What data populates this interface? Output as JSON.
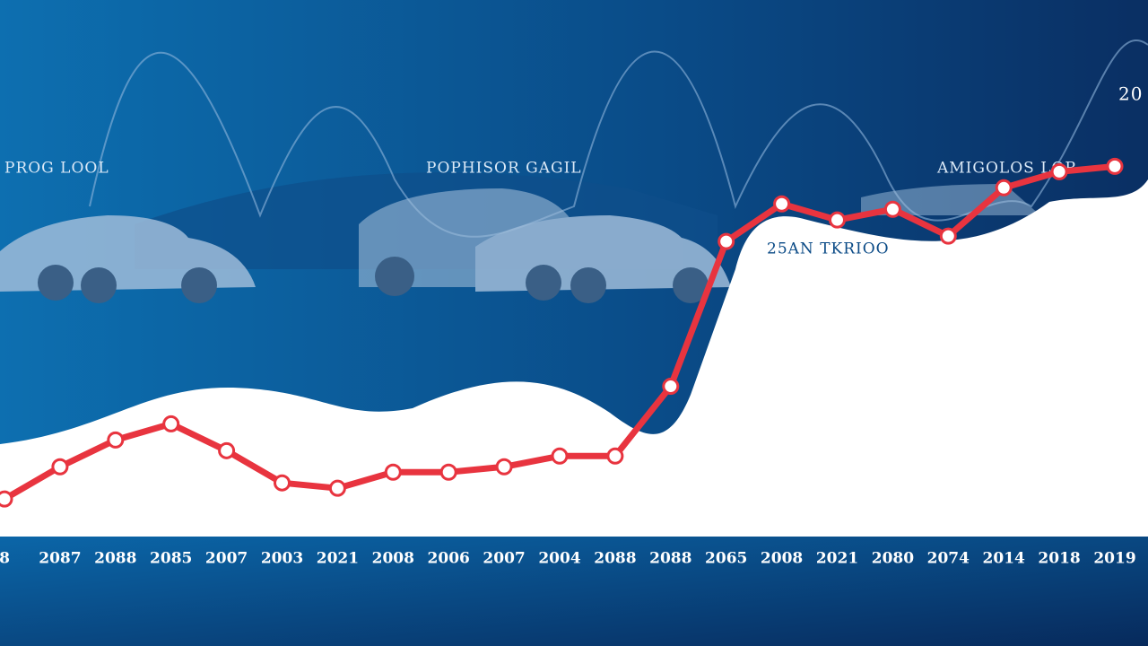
{
  "chart_data": {
    "type": "line",
    "categories": [
      "8",
      "2087",
      "2088",
      "2085",
      "2007",
      "2003",
      "2021",
      "2008",
      "2006",
      "2007",
      "2004",
      "2088",
      "2088",
      "2065",
      "2008",
      "2021",
      "2080",
      "2074",
      "2014",
      "2018",
      "2019"
    ],
    "series": [
      {
        "name": null,
        "color": "#e8343f",
        "values": [
          7,
          13,
          18,
          21,
          16,
          10,
          9,
          12,
          12,
          13,
          15,
          15,
          28,
          55,
          62,
          59,
          61,
          56,
          65,
          68,
          69
        ]
      }
    ],
    "ylim": [
      0,
      100
    ],
    "annotations": [
      "PROG LOOL",
      "POPHISOR GAGIL",
      "AMIGOLOS LOR",
      "25AN TKRIOO",
      "20"
    ]
  }
}
